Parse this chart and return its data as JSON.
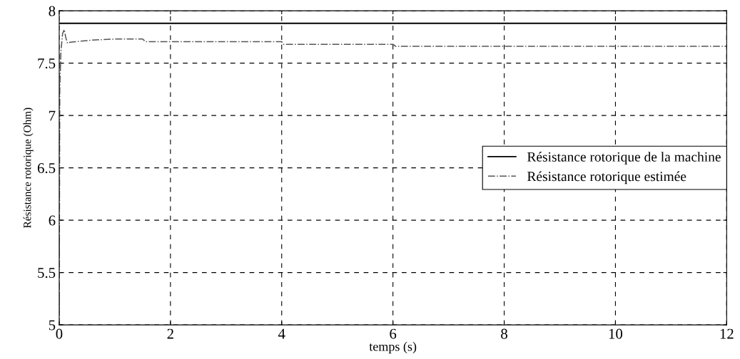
{
  "chart_data": {
    "type": "line",
    "xlabel": "temps (s)",
    "ylabel": "Résistance rotorique (Ohm)",
    "xlim": [
      0,
      12
    ],
    "ylim": [
      5,
      8
    ],
    "xticks": [
      0,
      2,
      4,
      6,
      8,
      10,
      12
    ],
    "yticks": [
      5,
      5.5,
      6,
      6.5,
      7,
      7.5,
      8
    ],
    "grid": true,
    "legend": "right",
    "series": [
      {
        "name": "Résistance rotorique de la machine",
        "color": "#000000",
        "line_style": "solid",
        "x": [
          0,
          12
        ],
        "values": [
          7.88,
          7.88
        ]
      },
      {
        "name": "Résistance rotorique estimée",
        "color": "#555555",
        "line_style": "dashdot",
        "x": [
          0,
          0.01,
          0.03,
          0.06,
          0.09,
          0.12,
          0.15,
          0.2,
          0.6,
          1.0,
          1.5,
          1.55,
          4.0,
          4.03,
          6.0,
          6.05,
          12
        ],
        "values": [
          5,
          7.25,
          7.6,
          7.78,
          7.82,
          7.74,
          7.69,
          7.7,
          7.72,
          7.73,
          7.73,
          7.705,
          7.705,
          7.68,
          7.68,
          7.66,
          7.66
        ]
      }
    ]
  }
}
